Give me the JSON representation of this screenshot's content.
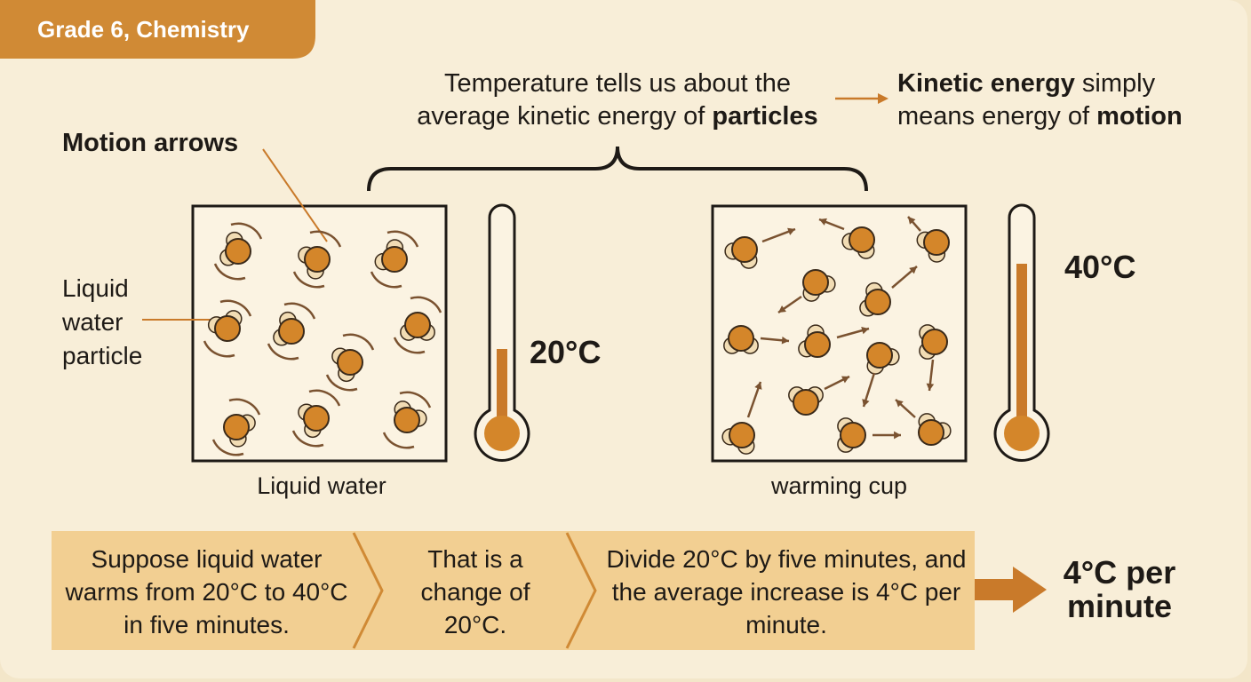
{
  "header": {
    "tag": "Grade 6, Chemistry"
  },
  "temperature_note": {
    "text": "Temperature tells us about the average kinetic energy of",
    "bold": "particles"
  },
  "kinetic_note": {
    "bold_term": "Kinetic energy",
    "text": "simply means energy of",
    "bold_end": "motion"
  },
  "labels": {
    "motion_arrows": "Motion arrows",
    "particle": "Liquid water particle"
  },
  "panels": [
    {
      "caption": "Liquid water",
      "temperature": "20°C"
    },
    {
      "caption": "warming cup",
      "temperature": "40°C"
    }
  ],
  "steps": [
    "Suppose liquid water warms from 20°C to 40°C in five minutes.",
    "That is a change of 20°C.",
    "Divide 20°C by five minutes, and the average increase is 4°C per minute."
  ],
  "result": "4°C per minute"
}
